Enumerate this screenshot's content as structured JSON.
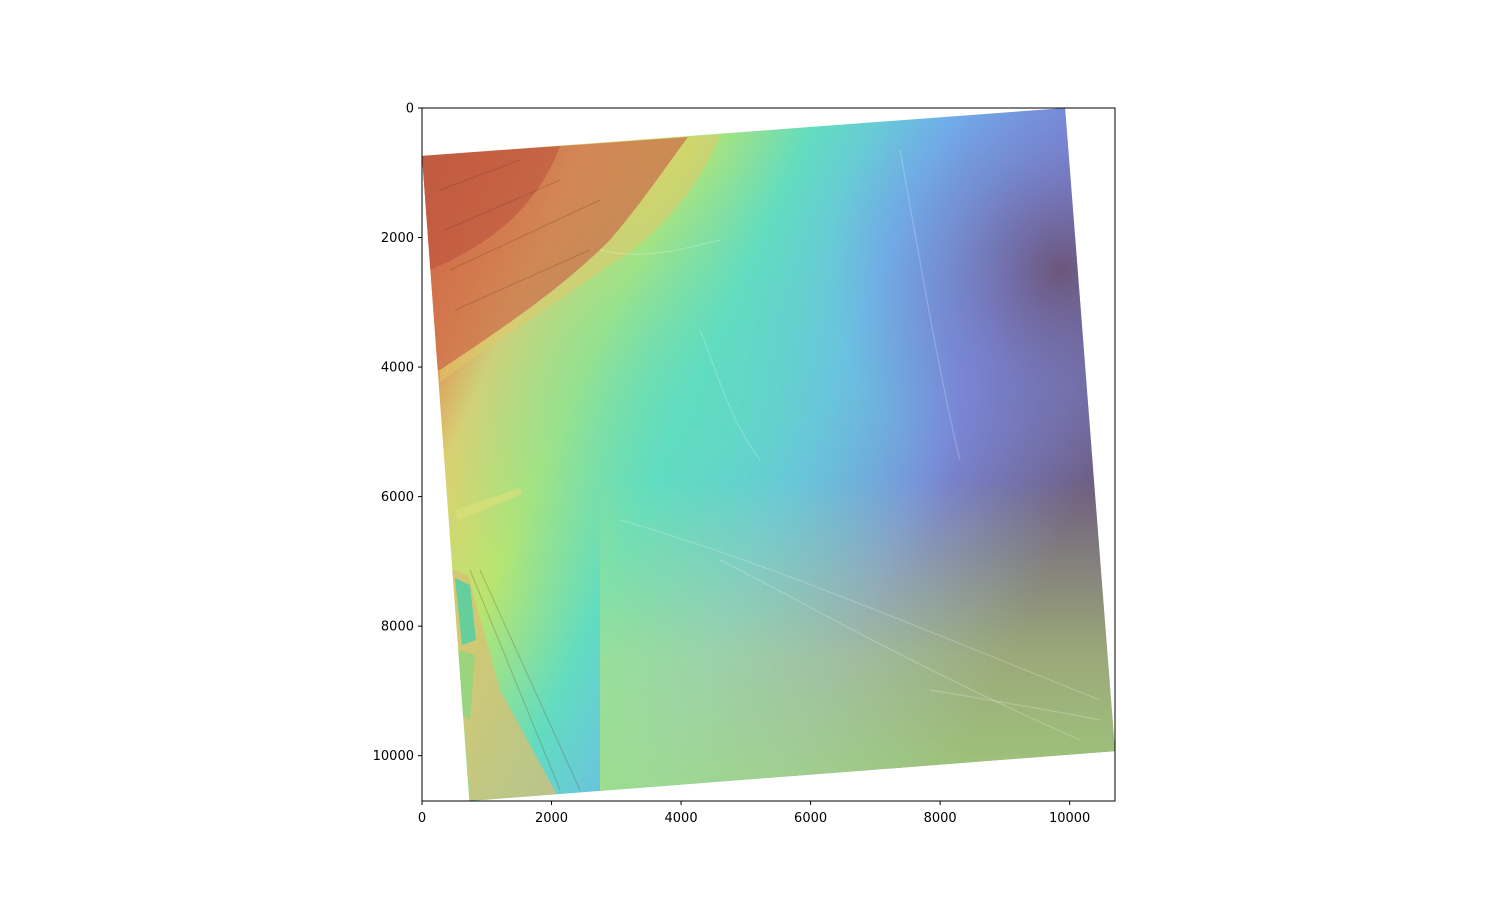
{
  "chart_data": {
    "type": "heatmap",
    "description_kind": "raster image (shaded relief elevation model) displayed with matplotlib imshow",
    "title": "",
    "xlabel": "",
    "ylabel": "",
    "xlim": [
      0,
      10700
    ],
    "ylim": [
      10700,
      0
    ],
    "y_axis_inverted": true,
    "grid": false,
    "legend": "none",
    "x_ticks": [
      0,
      2000,
      4000,
      6000,
      8000,
      10000
    ],
    "y_ticks": [
      0,
      2000,
      4000,
      6000,
      8000,
      10000
    ],
    "x_tick_labels": [
      "0",
      "2000",
      "4000",
      "6000",
      "8000",
      "10000"
    ],
    "y_tick_labels": [
      "0",
      "2000",
      "4000",
      "6000",
      "8000",
      "10000"
    ],
    "raster_footprint": [
      [
        0,
        740
      ],
      [
        9930,
        0
      ],
      [
        10700,
        9930
      ],
      [
        730,
        10700
      ]
    ],
    "colormap": "turbo (semi-transparent over hillshade)",
    "colors": {
      "high": "#a8473a",
      "upper": "#e0925a",
      "mid_high": "#c8e06e",
      "mid": "#5fdcc0",
      "mid_low": "#6cb4ee",
      "low": "#7a86dc",
      "lowest": "#6f5f84"
    }
  }
}
